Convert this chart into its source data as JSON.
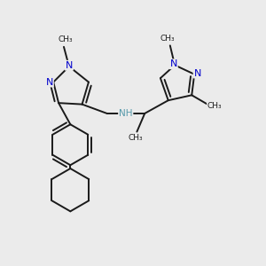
{
  "bg_color": "#ebebeb",
  "atom_color_N": "#0000cc",
  "atom_color_C": "#1a1a1a",
  "atom_color_NH": "#5599aa",
  "line_color": "#1a1a1a",
  "line_width": 1.4,
  "font_size_atom": 7.5,
  "fig_size": [
    3.0,
    3.0
  ],
  "dpi": 100,
  "xlim": [
    0,
    10
  ],
  "ylim": [
    0,
    10
  ]
}
